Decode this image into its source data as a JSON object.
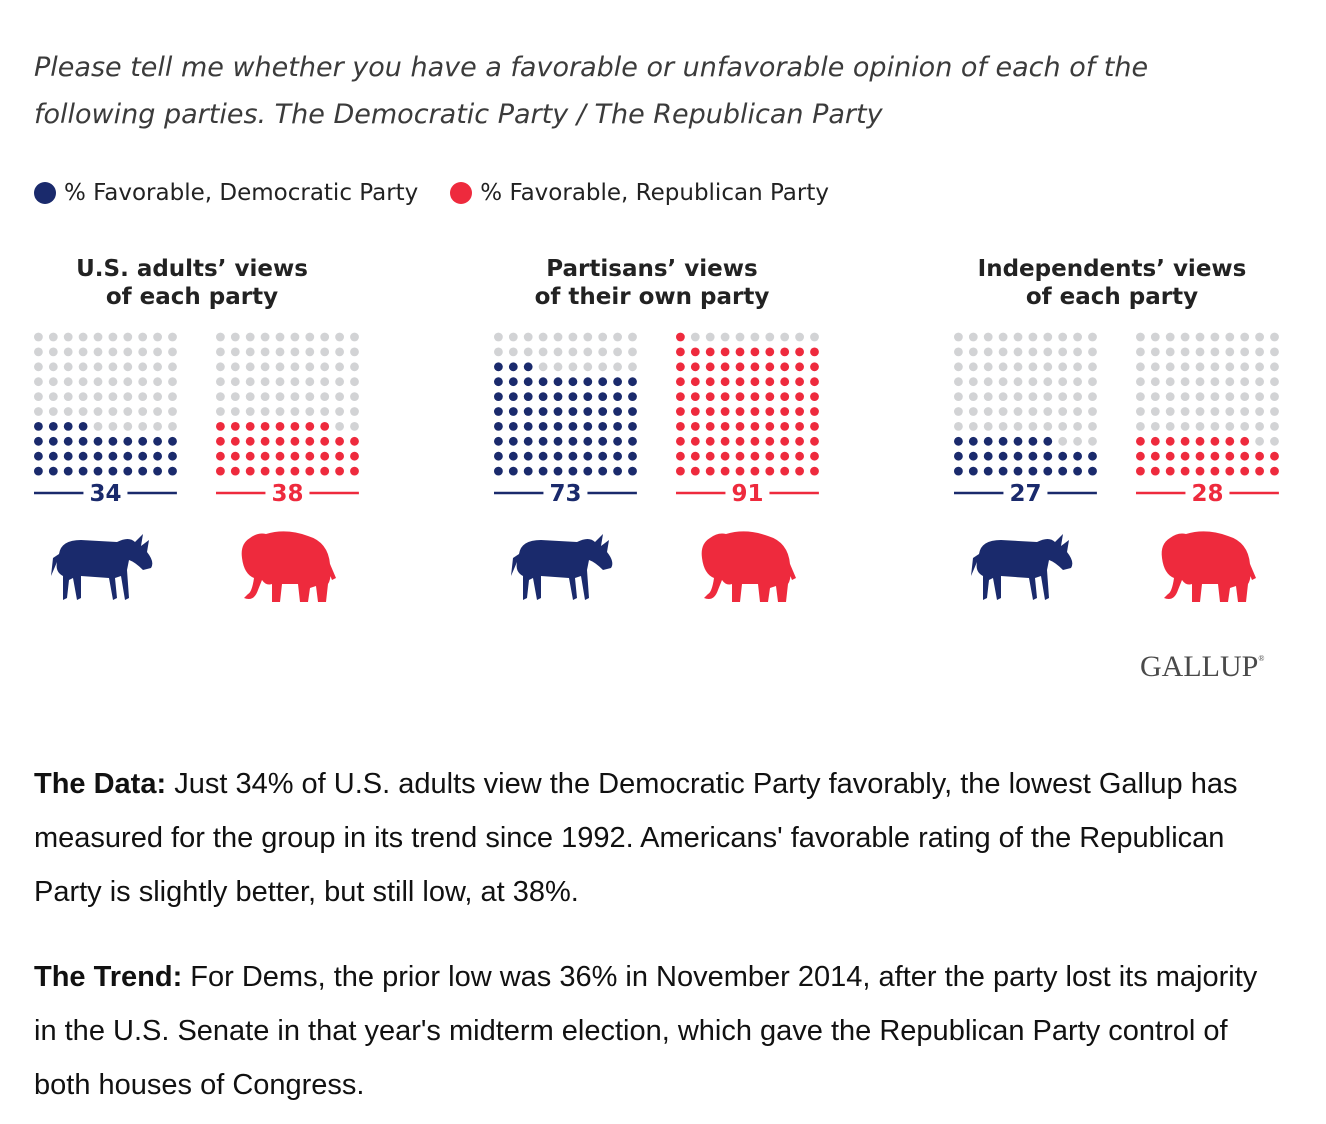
{
  "question": "Please tell me whether you have a favorable or unfavorable opinion of each of the following parties. The Democratic Party / The Republican Party",
  "colors": {
    "dem": "#1a2a6c",
    "rep": "#ee2a3d",
    "empty": "#d2d3d5"
  },
  "logo": "GALLUP",
  "chart_data": {
    "type": "waffle",
    "legend": [
      "% Favorable, Democratic Party",
      "% Favorable, Republican Party"
    ],
    "groups": [
      {
        "title_line1": "U.S. adults’ views",
        "title_line2": "of each party",
        "dem": 34,
        "rep": 38
      },
      {
        "title_line1": "Partisans’ views",
        "title_line2": "of their own party",
        "dem": 73,
        "rep": 91
      },
      {
        "title_line1": "Independents’ views",
        "title_line2": "of each party",
        "dem": 27,
        "rep": 28
      }
    ]
  },
  "paragraphs": {
    "data_label": "The Data:",
    "data_text": " Just 34% of U.S. adults view the Democratic Party favorably, the lowest Gallup has measured for the group in its trend since 1992. Americans' favorable rating of the Republican Party is slightly better, but still low, at 38%.",
    "trend_label": "The Trend:",
    "trend_text": " For Dems, the prior low was 36% in November 2014, after the party lost its majority in the U.S. Senate in that year's midterm election, which gave the Republican Party control of both houses of Congress."
  }
}
